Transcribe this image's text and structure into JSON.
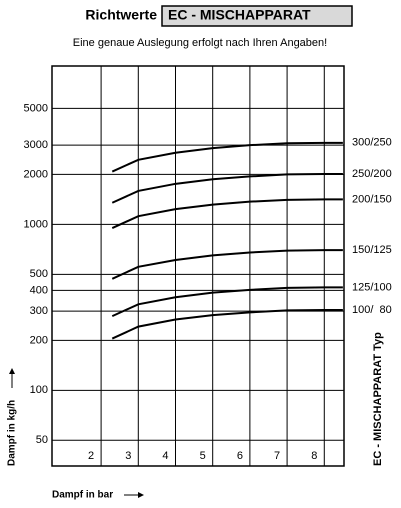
{
  "chart_data": {
    "type": "line",
    "title": "Richtwerte",
    "title_box": "EC - MISCHAPPARAT",
    "subtitle": "Eine genaue Auslegung erfolgt nach Ihren Angaben!",
    "y_label": "Dampf in kg/h",
    "x_label": "Dampf in bar",
    "legend_title": "EC - MISCHAPPARAT Typ",
    "x": [
      2.3,
      3,
      4,
      5,
      6,
      7,
      8,
      8.5
    ],
    "series": [
      {
        "name": "300/250",
        "color": "#000000",
        "values": [
          2080,
          2450,
          2700,
          2880,
          3000,
          3080,
          3100,
          3100
        ]
      },
      {
        "name": "250/200",
        "color": "#000000",
        "values": [
          1350,
          1590,
          1755,
          1870,
          1945,
          2000,
          2010,
          2010
        ]
      },
      {
        "name": "200/150",
        "color": "#000000",
        "values": [
          950,
          1120,
          1235,
          1315,
          1370,
          1405,
          1415,
          1415
        ]
      },
      {
        "name": "150/125",
        "color": "#000000",
        "values": [
          470,
          555,
          610,
          650,
          677,
          695,
          700,
          700
        ]
      },
      {
        "name": "125/100",
        "color": "#000000",
        "values": [
          280,
          330,
          364,
          388,
          403,
          414,
          417,
          417
        ]
      },
      {
        "name": "100/  80",
        "color": "#000000",
        "values": [
          205,
          242,
          267,
          284,
          295,
          303,
          305,
          305
        ]
      }
    ],
    "xlim": [
      0.68,
      8.53
    ],
    "xticks": [
      2,
      3,
      4,
      5,
      6,
      7,
      8
    ],
    "ylim": [
      35,
      9000
    ],
    "yticks": [
      50,
      100,
      200,
      300,
      400,
      500,
      1000,
      2000,
      3000,
      5000
    ],
    "ylog": true,
    "grid": true
  }
}
